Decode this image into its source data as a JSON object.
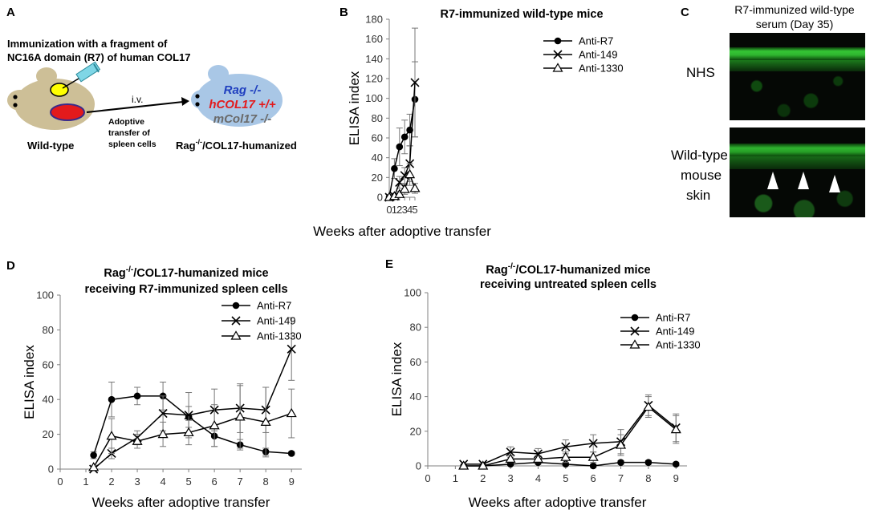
{
  "panels": {
    "A": {
      "letter": "A",
      "immunization_line1": "Immunization with a fragment of",
      "immunization_line2": "NC16A domain (R7) of human COL17",
      "iv": "i.v.",
      "adoptive_line1": "Adoptive",
      "adoptive_line2": "transfer of",
      "adoptive_line3": "spleen cells",
      "wildtype_label": "Wild-type",
      "rag_text": "Rag -/-",
      "hcol_text": "hCOL17 +/+",
      "mcol_text": "mCol17 -/-",
      "humanized_label_prefix": "Rag",
      "humanized_label_sup": "-/-",
      "humanized_label_suffix": "/COL17-humanized",
      "colors": {
        "mouse_body": "#cdbf97",
        "mouse_recipient": "#a9c7e6",
        "red": "#e31a1c",
        "yellow": "#ffff00",
        "syringe": "#7fd6e6",
        "rag_blue": "#1f3fbf",
        "mcol_grey": "#6a6a6a"
      }
    },
    "C": {
      "letter": "C",
      "title_line1": "R7-immunized wild-type",
      "title_line2": "serum (Day 35)",
      "label1": "NHS",
      "label2_line1": "Wild-type",
      "label2_line2": "mouse",
      "label2_line3": "skin",
      "colors": {
        "fluor": "#33c733",
        "background": "#050805"
      }
    }
  },
  "chart_data": [
    {
      "letter": "B",
      "type": "line",
      "title": "R7-immunized wild-type mice",
      "title_lines": [
        "R7-immunized wild-type mice"
      ],
      "xlabel": "Weeks after adoptive transfer",
      "ylabel": "ELISA index",
      "xlim": [
        0,
        5
      ],
      "ylim": [
        0,
        180
      ],
      "xticks": [
        0,
        1,
        2,
        3,
        4,
        5
      ],
      "yticks": [
        0,
        20,
        40,
        60,
        80,
        100,
        120,
        140,
        160,
        180
      ],
      "grid": false,
      "legend_position": "top-right",
      "series": [
        {
          "name": "Anti-R7",
          "marker": "circle",
          "x": [
            0,
            1,
            2,
            3,
            4,
            5
          ],
          "values": [
            0,
            29,
            51,
            61,
            68,
            99
          ],
          "err": [
            0,
            10,
            19,
            17,
            16,
            38
          ]
        },
        {
          "name": "Anti-149",
          "marker": "x",
          "x": [
            0,
            1,
            2,
            3,
            4,
            5
          ],
          "values": [
            0,
            1,
            15,
            22,
            34,
            116
          ],
          "err": [
            0,
            1,
            6,
            8,
            18,
            55
          ]
        },
        {
          "name": "Anti-1330",
          "marker": "triangle",
          "x": [
            0,
            1,
            2,
            3,
            4,
            5
          ],
          "values": [
            0,
            1,
            3,
            8,
            23,
            9
          ],
          "err": [
            0,
            1,
            3,
            5,
            11,
            5
          ]
        }
      ]
    },
    {
      "letter": "D",
      "type": "line",
      "title": "Rag-/-/COL17-humanized mice receiving R7-immunized spleen cells",
      "title_lines": [
        "Rag-/-/COL17-humanized mice",
        "receiving R7-immunized spleen cells"
      ],
      "xlabel": "Weeks after adoptive transfer",
      "ylabel": "ELISA index",
      "xlim": [
        0,
        9.4
      ],
      "ylim": [
        0,
        100
      ],
      "xticks": [
        0,
        1,
        2,
        3,
        4,
        5,
        6,
        7,
        8,
        9
      ],
      "yticks": [
        0,
        20,
        40,
        60,
        80,
        100
      ],
      "grid": false,
      "legend_position": "top-right",
      "series": [
        {
          "name": "Anti-R7",
          "marker": "circle",
          "x": [
            1.3,
            2,
            3,
            4,
            5,
            6,
            7,
            8,
            9
          ],
          "values": [
            8,
            40,
            42,
            42,
            30,
            19,
            14,
            10,
            9
          ],
          "err": [
            2,
            10,
            5,
            8,
            6,
            6,
            3,
            2,
            1
          ]
        },
        {
          "name": "Anti-149",
          "marker": "x",
          "x": [
            1.3,
            2,
            3,
            4,
            5,
            6,
            7,
            8,
            9
          ],
          "values": [
            0,
            9,
            18,
            32,
            31,
            34,
            35,
            34,
            69
          ],
          "err": [
            0,
            3,
            4,
            10,
            13,
            12,
            14,
            13,
            18
          ]
        },
        {
          "name": "Anti-1330",
          "marker": "triangle",
          "x": [
            1.3,
            2,
            3,
            4,
            5,
            6,
            7,
            8,
            9
          ],
          "values": [
            1,
            19,
            16,
            20,
            21,
            25,
            30,
            27,
            32
          ],
          "err": [
            0,
            10,
            4,
            7,
            7,
            12,
            18,
            20,
            14
          ]
        }
      ]
    },
    {
      "letter": "E",
      "type": "line",
      "title": "Rag-/-/COL17-humanized mice receiving untreated spleen cells",
      "title_lines": [
        "Rag-/-/COL17-humanized mice",
        "receiving untreated spleen cells"
      ],
      "xlabel": "Weeks after adoptive transfer",
      "ylabel": "ELISA index",
      "xlim": [
        0,
        9.4
      ],
      "ylim": [
        0,
        100
      ],
      "xticks": [
        0,
        1,
        2,
        3,
        4,
        5,
        6,
        7,
        8,
        9
      ],
      "yticks": [
        0,
        20,
        40,
        60,
        80,
        100
      ],
      "grid": false,
      "legend_position": "top-right",
      "series": [
        {
          "name": "Anti-R7",
          "marker": "circle",
          "x": [
            1.3,
            2,
            3,
            4,
            5,
            6,
            7,
            8,
            9
          ],
          "values": [
            0,
            0,
            1,
            2,
            1,
            0,
            2,
            2,
            1
          ],
          "err": [
            0,
            0,
            1,
            1,
            1,
            1,
            1,
            1,
            1
          ]
        },
        {
          "name": "Anti-149",
          "marker": "x",
          "x": [
            1.3,
            2,
            3,
            4,
            5,
            6,
            7,
            8,
            9
          ],
          "values": [
            1,
            1,
            8,
            7,
            11,
            13,
            14,
            35,
            22
          ],
          "err": [
            0,
            1,
            3,
            3,
            4,
            5,
            7,
            6,
            8
          ]
        },
        {
          "name": "Anti-1330",
          "marker": "triangle",
          "x": [
            1.3,
            2,
            3,
            4,
            5,
            6,
            7,
            8,
            9
          ],
          "values": [
            0,
            0,
            4,
            4,
            5,
            5,
            12,
            34,
            21
          ],
          "err": [
            0,
            0,
            2,
            2,
            3,
            3,
            6,
            6,
            8
          ]
        }
      ]
    }
  ]
}
